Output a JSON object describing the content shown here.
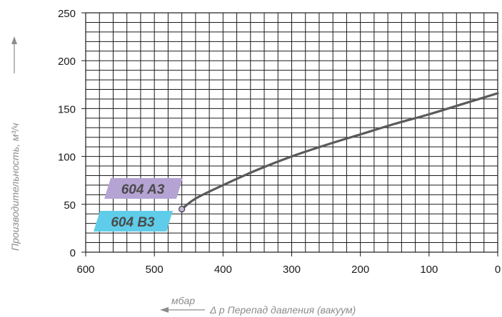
{
  "chart_data": {
    "type": "line",
    "title": "",
    "xlabel": "Δ p Перепад давления (вакуум)",
    "xunit": "мбар",
    "ylabel": "Производительность, м³/ч",
    "xlim": [
      600,
      0
    ],
    "ylim": [
      0,
      250
    ],
    "x_reversed": true,
    "xticks": [
      "600",
      "500",
      "400",
      "300",
      "200",
      "100",
      "0"
    ],
    "yticks": [
      "0",
      "50",
      "100",
      "150",
      "200",
      "250"
    ],
    "grid": true,
    "series": [
      {
        "name": "",
        "x": [
          460,
          440,
          400,
          350,
          300,
          250,
          200,
          150,
          100,
          50,
          0
        ],
        "y": [
          45,
          56,
          70,
          86,
          100,
          112,
          123,
          134,
          144,
          155,
          166
        ],
        "color": "#5a5a5a"
      }
    ],
    "labels": [
      {
        "text": "604 A3",
        "color": "#b4a3d3"
      },
      {
        "text": "604 B3",
        "color": "#5fcde9"
      }
    ],
    "start_marker": {
      "x": 460,
      "y": 45,
      "fill": "#c8b8dc"
    }
  }
}
